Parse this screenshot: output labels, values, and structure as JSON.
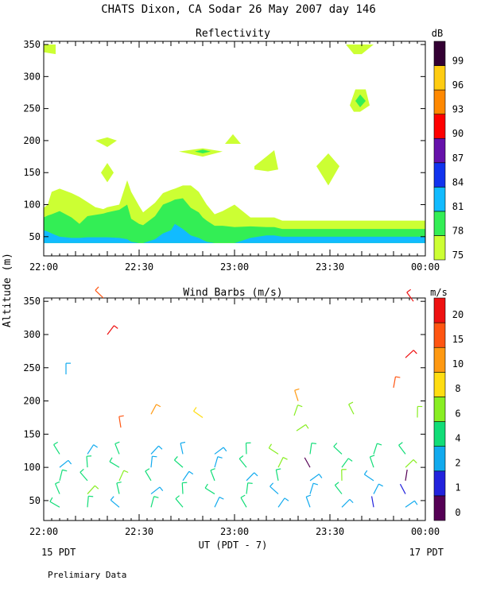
{
  "title": "CHATS Dixon, CA  Sodar  26 May 2007  day 146",
  "footer_left": "15 PDT",
  "footer_right": "17 PDT",
  "footnote": "Prelimiary Data",
  "y_shared_label": "Altitude (m)",
  "x_axis_label": "UT  (PDT - 7)",
  "chart_data": [
    {
      "type": "heatmap",
      "title": "Reflectivity",
      "ylim": [
        20,
        355
      ],
      "y_ticks": [
        50,
        100,
        150,
        200,
        250,
        300,
        350
      ],
      "x_ticks": [
        "22:00",
        "22:30",
        "23:00",
        "23:30",
        "00:00"
      ],
      "colorbar": {
        "unit": "dB",
        "levels": [
          75,
          78,
          81,
          84,
          87,
          90,
          93,
          96,
          99
        ],
        "colors": [
          "#ccff33",
          "#33ee55",
          "#11bbff",
          "#1133ee",
          "#6611aa",
          "#ff0000",
          "#ff8800",
          "#ffcc11",
          "#330033"
        ]
      },
      "band_x": [
        0,
        5,
        10,
        20,
        35,
        45,
        55,
        65,
        75,
        80,
        95,
        105,
        110,
        120,
        125,
        140,
        150,
        160,
        165,
        175,
        185,
        195,
        200,
        205,
        215,
        225,
        240,
        260,
        280,
        290,
        300,
        320,
        340,
        350,
        360,
        370,
        380,
        390,
        400,
        410,
        420,
        430,
        440,
        450,
        460,
        470,
        480
      ],
      "bands": [
        {
          "level": 75,
          "top": [
            95,
            100,
            120,
            125,
            118,
            112,
            104,
            96,
            93,
            96,
            100,
            138,
            120,
            98,
            88,
            103,
            118,
            123,
            125,
            130,
            130,
            120,
            110,
            100,
            85,
            90,
            100,
            80,
            80,
            80,
            75,
            75,
            75,
            75,
            75,
            75,
            75,
            75,
            75,
            75,
            75,
            75,
            75,
            75,
            75,
            75,
            75
          ]
        },
        {
          "level": 78,
          "top": [
            80,
            83,
            85,
            90,
            80,
            70,
            82,
            84,
            86,
            88,
            92,
            100,
            78,
            70,
            68,
            82,
            100,
            105,
            108,
            110,
            95,
            88,
            80,
            75,
            67,
            67,
            65,
            66,
            65,
            65,
            62,
            62,
            62,
            62,
            62,
            62,
            62,
            62,
            62,
            62,
            62,
            62,
            62,
            62,
            62,
            62,
            62
          ]
        },
        {
          "level": 81,
          "top": [
            60,
            58,
            55,
            50,
            48,
            48,
            49,
            49,
            49,
            49,
            48,
            46,
            42,
            40,
            40,
            46,
            55,
            60,
            70,
            62,
            52,
            48,
            45,
            42,
            40,
            40,
            40,
            48,
            52,
            52,
            50,
            50,
            50,
            50,
            50,
            50,
            50,
            50,
            50,
            50,
            50,
            50,
            50,
            50,
            50,
            50,
            50
          ]
        }
      ],
      "patches": [
        {
          "level": 75,
          "x": [
            0,
            15,
            15,
            0
          ],
          "y": [
            350,
            350,
            335,
            338
          ]
        },
        {
          "level": 75,
          "x": [
            380,
            415,
            400,
            390
          ],
          "y": [
            350,
            350,
            335,
            335
          ]
        },
        {
          "level": 75,
          "x": [
            385,
            392,
            405,
            410,
            398,
            390
          ],
          "y": [
            255,
            280,
            280,
            255,
            245,
            245
          ]
        },
        {
          "level": 78,
          "x": [
            392,
            398,
            405,
            398
          ],
          "y": [
            262,
            272,
            262,
            252
          ]
        },
        {
          "level": 75,
          "x": [
            65,
            80,
            92,
            80
          ],
          "y": [
            200,
            205,
            200,
            190
          ]
        },
        {
          "level": 75,
          "x": [
            72,
            80,
            88,
            80
          ],
          "y": [
            150,
            165,
            150,
            135
          ]
        },
        {
          "level": 75,
          "x": [
            170,
            200,
            225,
            200
          ],
          "y": [
            183,
            188,
            183,
            175
          ]
        },
        {
          "level": 78,
          "x": [
            190,
            200,
            210,
            200
          ],
          "y": [
            183,
            186,
            183,
            180
          ]
        },
        {
          "level": 75,
          "x": [
            228,
            238,
            248
          ],
          "y": [
            195,
            210,
            195
          ]
        },
        {
          "level": 75,
          "x": [
            265,
            280,
            290,
            295,
            282,
            265
          ],
          "y": [
            160,
            175,
            185,
            155,
            152,
            155
          ]
        },
        {
          "level": 75,
          "x": [
            343,
            358,
            372,
            358
          ],
          "y": [
            160,
            180,
            160,
            130
          ]
        }
      ]
    },
    {
      "type": "scatter",
      "title": "Wind Barbs (m/s)",
      "ylim": [
        20,
        355
      ],
      "y_ticks": [
        50,
        100,
        150,
        200,
        250,
        300,
        350
      ],
      "x_ticks": [
        "22:00",
        "22:30",
        "23:00",
        "23:30",
        "00:00"
      ],
      "colorbar": {
        "unit": "m/s",
        "levels": [
          0,
          1,
          2,
          4,
          6,
          8,
          10,
          15,
          20
        ],
        "colors": [
          "#550055",
          "#2222dd",
          "#11aaee",
          "#11dd77",
          "#88ee22",
          "#ffdd11",
          "#ff9911",
          "#ff5511",
          "#ee1111"
        ]
      },
      "barb_heights": [
        40,
        60,
        80,
        100,
        120
      ],
      "barb_columns": [
        {
          "x": 20,
          "speeds": [
            4,
            4,
            4,
            2,
            4
          ]
        },
        {
          "x": 55,
          "speeds": [
            4,
            6,
            4,
            4,
            2
          ]
        },
        {
          "x": 95,
          "speeds": [
            2,
            4,
            6,
            4,
            4
          ]
        },
        {
          "x": 135,
          "speeds": [
            4,
            2,
            4,
            2,
            2
          ]
        },
        {
          "x": 175,
          "speeds": [
            4,
            4,
            2,
            4,
            2
          ]
        },
        {
          "x": 215,
          "speeds": [
            2,
            4,
            4,
            2,
            2
          ]
        },
        {
          "x": 255,
          "speeds": [
            4,
            4,
            2,
            4,
            4
          ]
        },
        {
          "x": 295,
          "speeds": [
            2,
            2,
            4,
            6,
            6
          ]
        },
        {
          "x": 335,
          "speeds": [
            2,
            2,
            2,
            0,
            4
          ]
        },
        {
          "x": 375,
          "speeds": [
            2,
            4,
            6,
            4,
            4
          ]
        },
        {
          "x": 415,
          "speeds": [
            1,
            2,
            2,
            4,
            4
          ]
        },
        {
          "x": 455,
          "speeds": [
            2,
            1,
            0,
            6,
            4
          ]
        }
      ],
      "barbs_upper": [
        {
          "x": 28,
          "y": 240,
          "speed": 2
        },
        {
          "x": 80,
          "y": 300,
          "speed": 20
        },
        {
          "x": 75,
          "y": 355,
          "speed": 15
        },
        {
          "x": 97,
          "y": 160,
          "speed": 15
        },
        {
          "x": 135,
          "y": 180,
          "speed": 10
        },
        {
          "x": 200,
          "y": 175,
          "speed": 8
        },
        {
          "x": 320,
          "y": 200,
          "speed": 10
        },
        {
          "x": 315,
          "y": 178,
          "speed": 6
        },
        {
          "x": 318,
          "y": 155,
          "speed": 6
        },
        {
          "x": 390,
          "y": 180,
          "speed": 6
        },
        {
          "x": 440,
          "y": 220,
          "speed": 15
        },
        {
          "x": 455,
          "y": 265,
          "speed": 20
        },
        {
          "x": 465,
          "y": 350,
          "speed": 20
        },
        {
          "x": 470,
          "y": 175,
          "speed": 6
        }
      ]
    }
  ]
}
